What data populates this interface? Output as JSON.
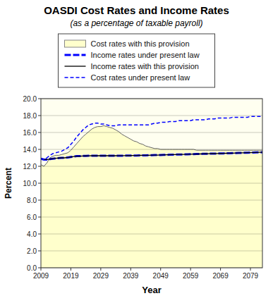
{
  "chart_data": {
    "type": "line",
    "title": "OASDI Cost Rates and Income Rates",
    "subtitle": "(as a percentage of taxable payroll)",
    "x_label": "Year",
    "y_label": "Percent",
    "xlim": [
      2009,
      2083
    ],
    "ylim": [
      0.0,
      20.0
    ],
    "xticks": [
      2009,
      2019,
      2029,
      2039,
      2049,
      2059,
      2069,
      2079
    ],
    "yticks": [
      {
        "value": 0.0,
        "label": "0.0"
      },
      {
        "value": 2.0,
        "label": "2.0"
      },
      {
        "value": 4.0,
        "label": "4.0"
      },
      {
        "value": 6.0,
        "label": "6.0"
      },
      {
        "value": 8.0,
        "label": "8.0"
      },
      {
        "value": 10.0,
        "label": "10.0"
      },
      {
        "value": 12.0,
        "label": "12.0"
      },
      {
        "value": 14.0,
        "label": "14.0"
      },
      {
        "value": 16.0,
        "label": "16.0"
      },
      {
        "value": 18.0,
        "label": "18.0"
      },
      {
        "value": 20.0,
        "label": "20.0"
      }
    ],
    "grid": true,
    "legend": "top",
    "x": [
      2009,
      2010,
      2011,
      2012,
      2013,
      2014,
      2015,
      2016,
      2017,
      2018,
      2019,
      2020,
      2021,
      2022,
      2023,
      2024,
      2025,
      2026,
      2027,
      2028,
      2029,
      2030,
      2031,
      2032,
      2033,
      2034,
      2035,
      2036,
      2037,
      2038,
      2039,
      2040,
      2041,
      2042,
      2043,
      2044,
      2045,
      2046,
      2047,
      2048,
      2049,
      2050,
      2051,
      2052,
      2053,
      2054,
      2055,
      2056,
      2057,
      2058,
      2059,
      2060,
      2061,
      2062,
      2063,
      2064,
      2065,
      2066,
      2067,
      2068,
      2069,
      2070,
      2071,
      2072,
      2073,
      2074,
      2075,
      2076,
      2077,
      2078,
      2079,
      2080,
      2081,
      2082,
      2083
    ],
    "series": [
      {
        "name": "Cost rates with this provision",
        "type": "area",
        "color": "#ffffcc",
        "line_style": "solid",
        "values": [
          12.2,
          12.0,
          12.4,
          13.0,
          13.2,
          13.3,
          13.3,
          13.4,
          13.5,
          13.6,
          13.9,
          14.3,
          14.7,
          15.1,
          15.5,
          15.8,
          16.1,
          16.4,
          16.6,
          16.7,
          16.7,
          16.8,
          16.7,
          16.6,
          16.5,
          16.3,
          16.1,
          15.8,
          15.6,
          15.4,
          15.2,
          15.0,
          14.9,
          14.7,
          14.6,
          14.4,
          14.3,
          14.2,
          14.1,
          14.1,
          14.0,
          14.0,
          14.0,
          14.0,
          14.0,
          14.0,
          14.0,
          14.0,
          14.0,
          14.0,
          14.0,
          14.0,
          13.9,
          13.9,
          13.9,
          13.9,
          13.9,
          13.9,
          13.9,
          13.9,
          13.9,
          13.9,
          13.9,
          13.9,
          13.9,
          13.9,
          13.9,
          13.9,
          13.9,
          13.9,
          13.9,
          13.9,
          13.9,
          13.9,
          13.9
        ]
      },
      {
        "name": "Income rates under present law",
        "type": "line",
        "color": "blue",
        "line_style": "dashed",
        "values": [
          12.9,
          12.8,
          12.8,
          12.85,
          12.9,
          12.95,
          12.98,
          13.0,
          13.0,
          13.05,
          13.1,
          13.15,
          13.2,
          13.2,
          13.22,
          13.23,
          13.24,
          13.25,
          13.25,
          13.25,
          13.25,
          13.25,
          13.25,
          13.25,
          13.25,
          13.25,
          13.26,
          13.26,
          13.26,
          13.27,
          13.27,
          13.28,
          13.28,
          13.29,
          13.3,
          13.3,
          13.31,
          13.32,
          13.33,
          13.33,
          13.34,
          13.35,
          13.36,
          13.37,
          13.38,
          13.39,
          13.4,
          13.4,
          13.41,
          13.42,
          13.43,
          13.44,
          13.45,
          13.46,
          13.47,
          13.48,
          13.49,
          13.5,
          13.5,
          13.51,
          13.52,
          13.53,
          13.54,
          13.55,
          13.56,
          13.57,
          13.58,
          13.59,
          13.6,
          13.61,
          13.62,
          13.63,
          13.64,
          13.65,
          13.66
        ]
      },
      {
        "name": "Income rates with this provision",
        "type": "line",
        "color": "black",
        "line_style": "solid",
        "values": [
          12.9,
          12.8,
          12.8,
          12.85,
          12.9,
          12.95,
          12.98,
          13.0,
          13.0,
          13.05,
          13.1,
          13.15,
          13.2,
          13.2,
          13.22,
          13.23,
          13.24,
          13.25,
          13.25,
          13.25,
          13.25,
          13.25,
          13.25,
          13.25,
          13.25,
          13.25,
          13.26,
          13.26,
          13.26,
          13.27,
          13.27,
          13.28,
          13.28,
          13.29,
          13.3,
          13.3,
          13.31,
          13.32,
          13.33,
          13.33,
          13.34,
          13.35,
          13.36,
          13.37,
          13.38,
          13.39,
          13.4,
          13.4,
          13.41,
          13.42,
          13.43,
          13.44,
          13.45,
          13.46,
          13.47,
          13.48,
          13.49,
          13.5,
          13.5,
          13.51,
          13.52,
          13.53,
          13.54,
          13.55,
          13.56,
          13.57,
          13.58,
          13.59,
          13.6,
          13.61,
          13.62,
          13.63,
          13.64,
          13.65,
          13.66
        ]
      },
      {
        "name": "Cost rates under present law",
        "type": "line",
        "color": "blue",
        "line_style": "dashed",
        "values": [
          12.9,
          12.8,
          13.0,
          13.3,
          13.5,
          13.6,
          13.7,
          13.8,
          14.0,
          14.2,
          14.6,
          15.0,
          15.5,
          15.9,
          16.3,
          16.6,
          16.9,
          17.0,
          17.1,
          17.1,
          17.0,
          17.0,
          16.9,
          16.8,
          16.8,
          16.8,
          16.9,
          16.9,
          16.9,
          16.9,
          16.9,
          16.9,
          16.9,
          16.9,
          16.9,
          16.9,
          16.9,
          17.0,
          17.1,
          17.1,
          17.2,
          17.2,
          17.2,
          17.3,
          17.3,
          17.3,
          17.4,
          17.4,
          17.4,
          17.4,
          17.4,
          17.5,
          17.5,
          17.5,
          17.5,
          17.5,
          17.6,
          17.6,
          17.6,
          17.7,
          17.7,
          17.7,
          17.7,
          17.7,
          17.8,
          17.8,
          17.8,
          17.8,
          17.8,
          17.8,
          17.9,
          17.9,
          17.9,
          17.9,
          17.9
        ]
      }
    ]
  }
}
